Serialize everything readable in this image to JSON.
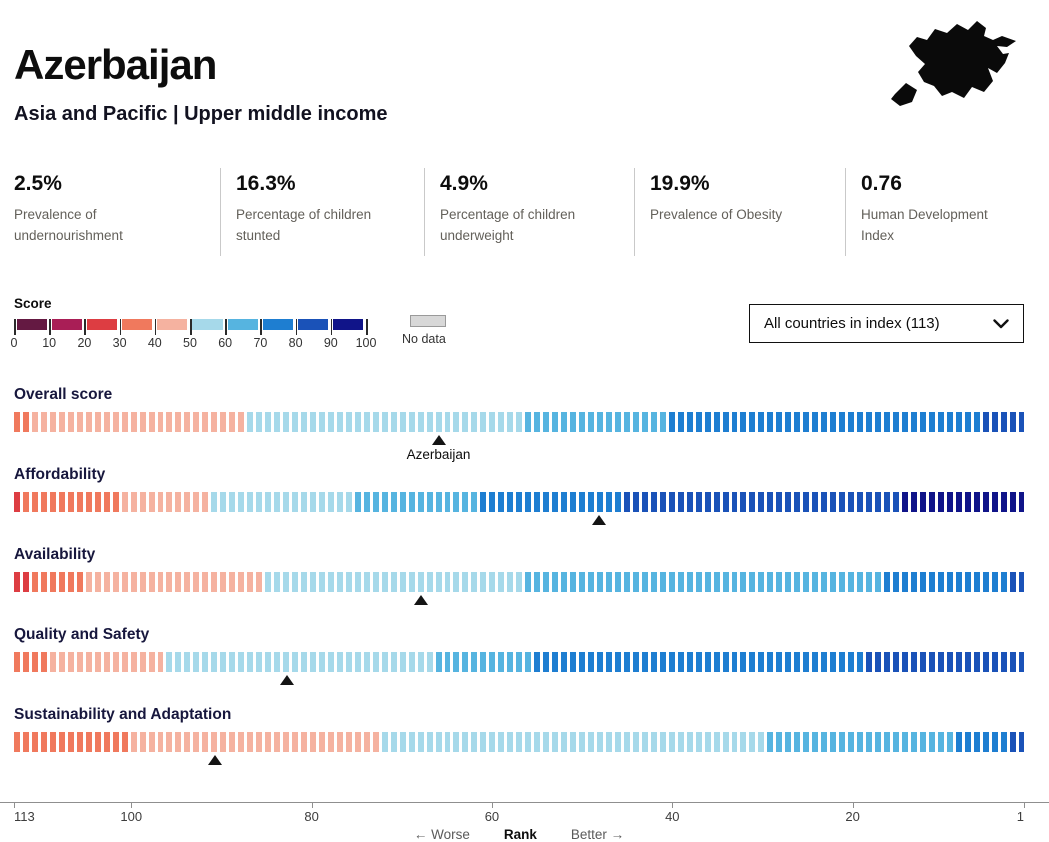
{
  "header": {
    "title": "Azerbaijan",
    "subtitle": "Asia and Pacific | Upper middle income"
  },
  "stats": [
    {
      "value": "2.5%",
      "label": "Prevalence of undernourishment"
    },
    {
      "value": "16.3%",
      "label": "Percentage of children stunted"
    },
    {
      "value": "4.9%",
      "label": "Percentage of children underweight"
    },
    {
      "value": "19.9%",
      "label": "Prevalence of Obesity"
    },
    {
      "value": "0.76",
      "label": "Human Development Index"
    }
  ],
  "legend": {
    "title": "Score",
    "tick_labels": [
      "0",
      "10",
      "20",
      "30",
      "40",
      "50",
      "60",
      "70",
      "80",
      "90",
      "100"
    ],
    "colors": [
      "#641942",
      "#a91e56",
      "#dd3d42",
      "#f0795d",
      "#f5b2a0",
      "#a6d9ea",
      "#56b4e0",
      "#1e7ed1",
      "#1a52b8",
      "#101489"
    ],
    "no_data_label": "No data",
    "no_data_color": "#d8d8d8"
  },
  "filter": {
    "selected": "All countries in index (113)"
  },
  "chart_data": {
    "type": "bar",
    "variant": "rank-strip",
    "title": "",
    "total_countries": 113,
    "order": "rank 113 (worst) at left to rank 1 (best) at right; each bar is one country colored by its score bucket",
    "axis": {
      "min_rank": 1,
      "max_rank": 113,
      "ticks": [
        {
          "label": "113",
          "rank": 113
        },
        {
          "label": "100",
          "rank": 100
        },
        {
          "label": "80",
          "rank": 80
        },
        {
          "label": "60",
          "rank": 60
        },
        {
          "label": "40",
          "rank": 40
        },
        {
          "label": "20",
          "rank": 20
        },
        {
          "label": "1",
          "rank": 1
        }
      ],
      "worse": "← Worse",
      "rank_label": "Rank",
      "better": "Better →"
    },
    "rows": [
      {
        "label": "Overall score",
        "segments": [
          [
            3,
            2
          ],
          [
            4,
            24
          ],
          [
            5,
            31
          ],
          [
            6,
            16
          ],
          [
            7,
            35
          ],
          [
            8,
            5
          ]
        ],
        "marker_bar_index": 48,
        "marker_label": "Azerbaijan"
      },
      {
        "label": "Affordability",
        "segments": [
          [
            2,
            1
          ],
          [
            3,
            11
          ],
          [
            4,
            10
          ],
          [
            5,
            16
          ],
          [
            6,
            14
          ],
          [
            7,
            16
          ],
          [
            8,
            31
          ],
          [
            9,
            14
          ]
        ],
        "marker_bar_index": 66,
        "marker_label": ""
      },
      {
        "label": "Availability",
        "segments": [
          [
            2,
            2
          ],
          [
            3,
            6
          ],
          [
            4,
            20
          ],
          [
            5,
            29
          ],
          [
            6,
            40
          ],
          [
            7,
            14
          ],
          [
            8,
            2
          ]
        ],
        "marker_bar_index": 46,
        "marker_label": ""
      },
      {
        "label": "Quality and Safety",
        "segments": [
          [
            3,
            4
          ],
          [
            4,
            13
          ],
          [
            5,
            30
          ],
          [
            6,
            11
          ],
          [
            7,
            37
          ],
          [
            8,
            18
          ]
        ],
        "marker_bar_index": 31,
        "marker_label": ""
      },
      {
        "label": "Sustainability and Adaptation",
        "segments": [
          [
            3,
            13
          ],
          [
            4,
            28
          ],
          [
            5,
            43
          ],
          [
            6,
            21
          ],
          [
            7,
            6
          ],
          [
            8,
            2
          ]
        ],
        "marker_bar_index": 23,
        "marker_label": ""
      }
    ]
  }
}
